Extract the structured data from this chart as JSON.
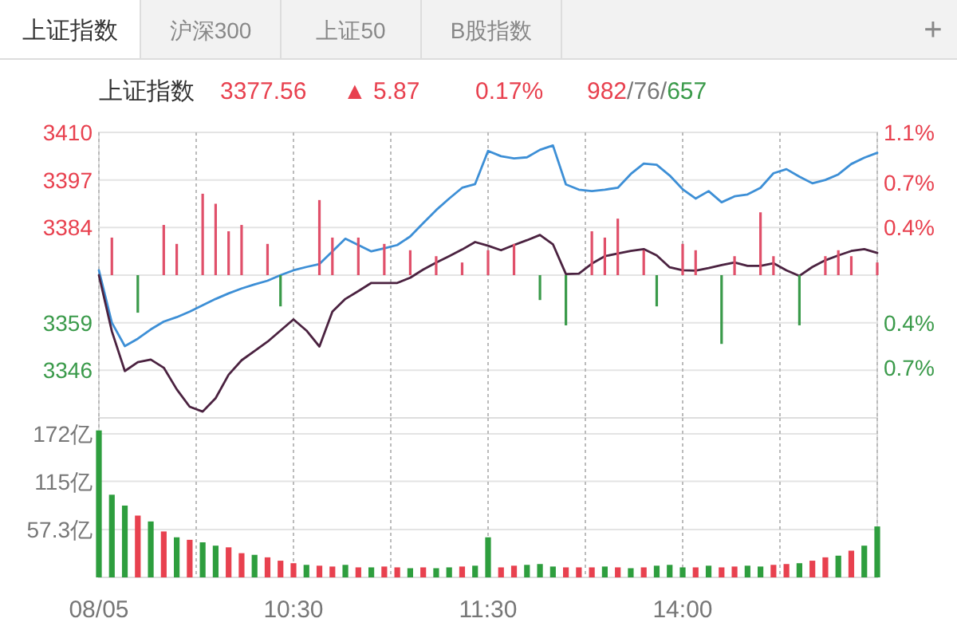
{
  "chart_data": [
    {
      "type": "line",
      "annotations": [
        "上证指数",
        "沪深300",
        "上证50",
        "B股指数",
        "+",
        "上证指数",
        "3377.56",
        "▲ 5.87",
        "0.17%",
        "982/76/657"
      ],
      "categories": [
        null,
        null,
        null,
        null,
        null,
        null,
        null,
        null,
        null,
        null,
        null,
        null,
        null,
        null,
        null,
        null,
        null,
        null,
        null,
        null,
        null,
        null,
        null,
        null,
        null,
        null,
        null,
        null,
        null,
        null,
        null,
        null,
        null,
        null,
        null,
        null,
        null,
        null,
        null,
        null,
        null,
        null,
        null,
        null,
        null,
        null,
        null,
        null,
        null,
        null,
        null,
        null,
        null,
        null,
        null,
        null,
        null,
        null,
        null,
        null,
        null
      ],
      "ylim": [
        3333.2,
        3410
      ],
      "yticks": [
        {
          "value": 3410,
          "label": "3410"
        },
        {
          "value": 3397.2,
          "label": "3397"
        },
        {
          "value": 3384.4,
          "label": "3384"
        },
        {
          "value": 3371.6,
          "label": null
        },
        {
          "value": 3358.8,
          "label": "3359"
        },
        {
          "value": 3346,
          "label": "3346"
        }
      ],
      "y2lim": [
        -1.14,
        1.14
      ],
      "y2ticks": [
        {
          "value": 1.14,
          "label": "1.1%"
        },
        {
          "value": 0.74,
          "label": "0.7%"
        },
        {
          "value": 0.38,
          "label": "0.4%"
        },
        {
          "value": -0.38,
          "label": "0.4%"
        },
        {
          "value": -0.74,
          "label": "0.7%"
        }
      ],
      "tick_labels": "y",
      "grid": true,
      "series": [
        {
          "color": "#3d8fd6",
          "values": [
            3372.9,
            3358.8,
            3352.5,
            3354.5,
            3357.0,
            3359.1,
            3360.3,
            3361.8,
            3363.5,
            3365.2,
            3366.7,
            3368.0,
            3369.1,
            3370.1,
            3371.6,
            3372.9,
            3373.8,
            3374.6,
            3378.0,
            3381.4,
            3379.7,
            3378.0,
            3378.8,
            3379.7,
            3382.0,
            3385.6,
            3389.1,
            3392.2,
            3395.1,
            3396.1,
            3405.0,
            3403.6,
            3403.0,
            3403.3,
            3405.3,
            3406.5,
            3396.0,
            3394.6,
            3394.2,
            3394.6,
            3395.1,
            3398.8,
            3401.6,
            3401.3,
            3398.4,
            3394.7,
            3392.2,
            3394.2,
            3391.2,
            3392.8,
            3393.3,
            3395.1,
            3399.0,
            3400.1,
            3398.1,
            3396.3,
            3397.2,
            3398.7,
            3401.5,
            3403.2,
            3404.5
          ]
        },
        {
          "color": "#4b2240",
          "values": [
            3371.6,
            3356.5,
            3345.8,
            3348.2,
            3348.9,
            3346.7,
            3340.9,
            3336.2,
            3334.9,
            3338.5,
            3344.8,
            3348.7,
            3351.2,
            3353.7,
            3356.7,
            3359.7,
            3356.7,
            3352.4,
            3361.8,
            3365.2,
            3367.3,
            3369.5,
            3369.5,
            3369.5,
            3370.9,
            3373.1,
            3375.0,
            3376.7,
            3378.5,
            3380.5,
            3379.5,
            3378.3,
            3379.7,
            3381.0,
            3382.4,
            3379.9,
            3371.9,
            3372.0,
            3374.7,
            3376.7,
            3377.4,
            3378.1,
            3378.6,
            3376.9,
            3373.7,
            3372.9,
            3372.8,
            3373.5,
            3374.3,
            3375.0,
            3374.1,
            3374.1,
            3374.8,
            3372.9,
            3371.4,
            3373.8,
            3375.6,
            3376.9,
            3378.1,
            3378.6,
            3377.6
          ]
        },
        {
          "type": "bar",
          "values": [
            null,
            10.1,
            null,
            -10.1,
            null,
            13.5,
            8.4,
            null,
            21.9,
            19.2,
            11.8,
            13.5,
            null,
            8.4,
            -8.4,
            null,
            null,
            20.2,
            10.1,
            null,
            10.1,
            null,
            8.4,
            null,
            6.7,
            null,
            5.1,
            null,
            3.4,
            null,
            6.7,
            null,
            8.4,
            null,
            -6.7,
            null,
            -13.5,
            null,
            11.8,
            10.1,
            15.2,
            null,
            6.7,
            -8.4,
            null,
            8.4,
            6.7,
            null,
            -18.5,
            5.1,
            null,
            16.9,
            5.1,
            null,
            -13.5,
            null,
            5.1,
            6.7,
            5.1,
            null,
            3.4
          ],
          "base": [
            null,
            3371.6,
            null,
            3371.6,
            null,
            3371.6,
            3371.6,
            null,
            3371.6,
            3371.6,
            3371.6,
            3371.6,
            null,
            3371.6,
            3371.6,
            null,
            null,
            3371.6,
            3371.6,
            null,
            3371.6,
            null,
            3371.6,
            null,
            3371.6,
            null,
            3371.6,
            null,
            3371.6,
            null,
            3371.6,
            null,
            3371.6,
            null,
            3371.6,
            null,
            3371.6,
            null,
            3371.6,
            3371.6,
            3371.6,
            null,
            3371.6,
            3371.6,
            null,
            3371.6,
            3371.6,
            null,
            3371.6,
            3371.6,
            null,
            3371.6,
            3371.6,
            null,
            3371.6,
            null,
            3371.6,
            3371.6,
            3371.6,
            null,
            3371.6
          ],
          "colors": [
            null,
            "#e0506a",
            null,
            "#3a9a4a",
            null,
            "#e0506a",
            "#e0506a",
            null,
            "#e0506a",
            "#e0506a",
            "#e0506a",
            "#e0506a",
            null,
            "#e0506a",
            "#3a9a4a",
            null,
            null,
            "#e0506a",
            "#e0506a",
            null,
            "#e0506a",
            null,
            "#e0506a",
            null,
            "#e0506a",
            null,
            "#e0506a",
            null,
            "#e0506a",
            null,
            "#e0506a",
            null,
            "#e0506a",
            null,
            "#3a9a4a",
            null,
            "#3a9a4a",
            null,
            "#e0506a",
            "#e0506a",
            "#e0506a",
            null,
            "#e0506a",
            "#3a9a4a",
            null,
            "#e0506a",
            "#e0506a",
            null,
            "#3a9a4a",
            "#e0506a",
            null,
            "#e0506a",
            "#e0506a",
            null,
            "#3a9a4a",
            null,
            "#e0506a",
            "#e0506a",
            "#e0506a",
            null,
            "#e0506a"
          ]
        }
      ]
    },
    {
      "type": "bar",
      "categories": [
        "08/05",
        null,
        null,
        null,
        null,
        null,
        null,
        null,
        null,
        null,
        null,
        null,
        null,
        null,
        null,
        "10:30",
        null,
        null,
        null,
        null,
        null,
        null,
        null,
        null,
        null,
        null,
        null,
        null,
        null,
        null,
        "11:30",
        null,
        null,
        null,
        null,
        null,
        null,
        null,
        null,
        null,
        null,
        null,
        null,
        null,
        null,
        "14:00",
        null,
        null,
        null,
        null,
        null,
        null,
        null,
        null,
        null,
        null,
        null,
        null,
        null,
        null,
        null
      ],
      "ylim": [
        0,
        191
      ],
      "yticks": [
        {
          "value": 57.3,
          "label": "57.3亿"
        },
        {
          "value": 115,
          "label": "115亿"
        },
        {
          "value": 172,
          "label": "172亿"
        }
      ],
      "grid": true,
      "values": [
        176,
        99,
        86,
        74,
        67,
        55,
        48,
        45,
        42,
        38,
        36,
        29,
        27,
        24,
        20,
        17,
        15,
        14,
        13,
        15,
        12,
        12,
        13,
        12,
        11,
        12,
        11,
        12,
        13,
        14,
        48,
        12,
        14,
        15,
        16,
        13,
        12,
        12,
        12,
        13,
        12,
        11,
        12,
        14,
        15,
        12,
        12,
        14,
        12,
        13,
        14,
        13,
        15,
        16,
        17,
        20,
        24,
        26,
        32,
        38,
        61
      ],
      "colors": [
        "#2e9e3e",
        "#2e9e3e",
        "#2e9e3e",
        "#e8414f",
        "#2e9e3e",
        "#e8414f",
        "#2e9e3e",
        "#e8414f",
        "#2e9e3e",
        "#2e9e3e",
        "#e8414f",
        "#e8414f",
        "#2e9e3e",
        "#e8414f",
        "#e8414f",
        "#e8414f",
        "#2e9e3e",
        "#e8414f",
        "#e8414f",
        "#2e9e3e",
        "#e8414f",
        "#2e9e3e",
        "#e8414f",
        "#e8414f",
        "#2e9e3e",
        "#e8414f",
        "#2e9e3e",
        "#2e9e3e",
        "#e8414f",
        "#2e9e3e",
        "#2e9e3e",
        "#e8414f",
        "#e8414f",
        "#2e9e3e",
        "#2e9e3e",
        "#2e9e3e",
        "#e8414f",
        "#e8414f",
        "#e8414f",
        "#2e9e3e",
        "#e8414f",
        "#2e9e3e",
        "#e8414f",
        "#2e9e3e",
        "#2e9e3e",
        "#2e9e3e",
        "#e8414f",
        "#2e9e3e",
        "#e8414f",
        "#e8414f",
        "#2e9e3e",
        "#2e9e3e",
        "#e8414f",
        "#e8414f",
        "#2e9e3e",
        "#e8414f",
        "#e8414f",
        "#2e9e3e",
        "#e8414f",
        "#2e9e3e",
        "#2e9e3e"
      ]
    }
  ]
}
